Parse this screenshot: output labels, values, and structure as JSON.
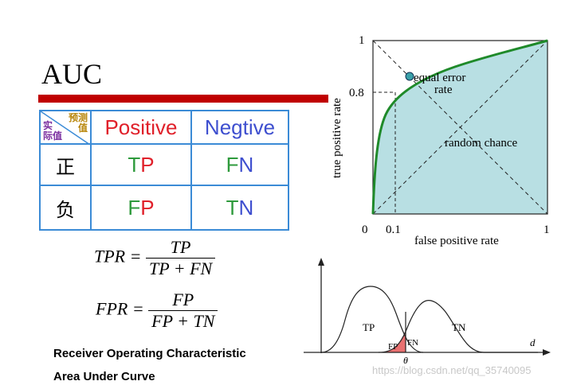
{
  "title": "AUC",
  "matrix": {
    "corner_pred": [
      "预测",
      "值"
    ],
    "corner_actual": [
      "实",
      "际值"
    ],
    "col_positive": "Positive",
    "col_negative": "Negtive",
    "row_pos": "正",
    "row_neg": "负",
    "tp": [
      "T",
      "P"
    ],
    "fn": [
      "F",
      "N"
    ],
    "fp": [
      "F",
      "P"
    ],
    "tn": [
      "T",
      "N"
    ]
  },
  "formulas": {
    "tpr_lhs": "TPR =",
    "tpr_num": "TP",
    "tpr_den": "TP + FN",
    "fpr_lhs": "FPR =",
    "fpr_num": "FP",
    "fpr_den": "FP + TN"
  },
  "notes": {
    "roc": "Receiver Operating Characteristic",
    "auc": "Area Under Curve"
  },
  "roc": {
    "ylabel": "true positive rate",
    "xlabel": "false positive rate",
    "y_one": "1",
    "y_08": "0.8",
    "x_zero": "0",
    "x_01": "0.1",
    "x_one": "1",
    "equal_error": "equal error",
    "rate": "rate",
    "random": "random chance",
    "colors": {
      "curve": "#1f8a2a",
      "area": "#b8dfe3",
      "point": "#3aa0a8"
    }
  },
  "dist": {
    "tp": "TP",
    "tn": "TN",
    "fp": "FP",
    "fn": "FN",
    "theta": "θ",
    "d": "d"
  },
  "watermark": "https://blog.csdn.net/qq_35740095"
}
